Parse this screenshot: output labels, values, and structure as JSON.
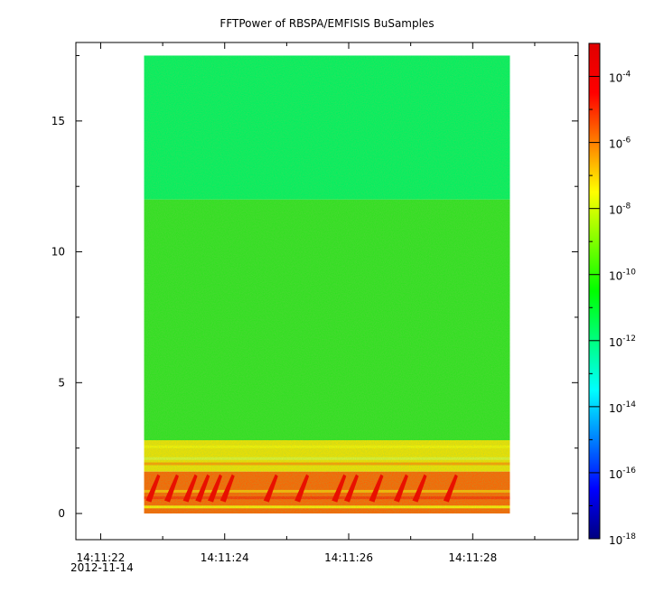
{
  "chart_data": {
    "type": "heatmap",
    "title": "FFTPower of RBSPA/EMFISIS  BuSamples",
    "xlabel": "",
    "ylabel": "",
    "x_ticks": [
      "14:11:22",
      "14:11:24",
      "14:11:26",
      "14:11:28"
    ],
    "x_date_label": "2012-11-14",
    "y_ticks": [
      0,
      5,
      10,
      15
    ],
    "ylim": [
      -1,
      18
    ],
    "xlim": [
      "14:11:21.6",
      "14:11:29.7"
    ],
    "data_extent": {
      "x_start": "14:11:22.7",
      "x_end": "14:11:28.6",
      "y_start": 0,
      "y_end": 17.5
    },
    "colorbar": {
      "scale": "log",
      "range": [
        1e-18,
        0.001
      ],
      "tick_exponents": [
        -4,
        -6,
        -8,
        -10,
        -12,
        -14,
        -16,
        -18
      ],
      "tick_base": "10",
      "colormap": [
        "#00007f",
        "#0000ff",
        "#0080ff",
        "#00ffff",
        "#00ff80",
        "#00ff00",
        "#80ff00",
        "#ffff00",
        "#ff8000",
        "#ff0000",
        "#e00000"
      ]
    },
    "regions": [
      {
        "y_range": [
          12,
          17.5
        ],
        "level": "1e-12",
        "color": "#00f060"
      },
      {
        "y_range": [
          2.8,
          12
        ],
        "level": "1e-10",
        "color": "#30e020"
      },
      {
        "y_range": [
          1.6,
          2.8
        ],
        "level": "1e-8",
        "color": "#f0e000"
      },
      {
        "y_range": [
          0,
          1.6
        ],
        "level": "1e-6",
        "color": "#ff6000"
      }
    ],
    "bursts_time": [
      "14:11:22.8",
      "14:11:23.1",
      "14:11:23.4",
      "14:11:23.6",
      "14:11:23.8",
      "14:11:24.0",
      "14:11:24.7",
      "14:11:25.2",
      "14:11:25.8",
      "14:11:26.0",
      "14:11:26.4",
      "14:11:26.8",
      "14:11:27.1",
      "14:11:27.6"
    ]
  }
}
